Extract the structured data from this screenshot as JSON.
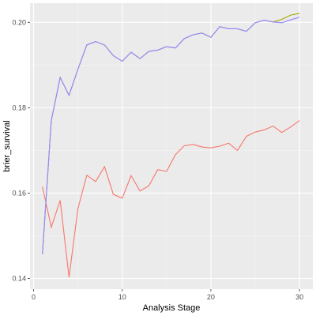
{
  "chart_data": {
    "type": "line",
    "title": "",
    "xlabel": "Analysis Stage",
    "ylabel": "brier_survival",
    "xlim": [
      -0.4,
      31.5
    ],
    "ylim": [
      0.1375,
      0.2045
    ],
    "x_ticks": [
      0,
      10,
      20,
      30
    ],
    "y_ticks": [
      0.14,
      0.16,
      0.18,
      0.2
    ],
    "x_tick_labels": [
      "0",
      "10",
      "20",
      "30"
    ],
    "y_tick_labels": [
      "0.14",
      "0.16",
      "0.18",
      "0.20"
    ],
    "grid": true,
    "legend": "none",
    "panel_background": "#EBEBEB",
    "x": [
      1,
      2,
      3,
      4,
      5,
      6,
      7,
      8,
      9,
      10,
      11,
      12,
      13,
      14,
      15,
      16,
      17,
      18,
      19,
      20,
      21,
      22,
      23,
      24,
      25,
      26,
      27,
      28,
      29,
      30
    ],
    "series": [
      {
        "color": "#F8766D",
        "values": [
          0.1615,
          0.152,
          0.1583,
          0.1403,
          0.1563,
          0.1642,
          0.1627,
          0.1662,
          0.1597,
          0.1588,
          0.1641,
          0.1605,
          0.1617,
          0.1655,
          0.1651,
          0.169,
          0.1711,
          0.1714,
          0.1708,
          0.1706,
          0.171,
          0.1717,
          0.17,
          0.1733,
          0.1743,
          0.1748,
          0.1757,
          0.1742,
          0.1755,
          0.177
        ]
      },
      {
        "color": "#A3A500",
        "values": [
          0.1457,
          0.177,
          0.1871,
          0.1829,
          0.189,
          0.1947,
          0.1955,
          0.1947,
          0.1922,
          0.1909,
          0.193,
          0.1915,
          0.1932,
          0.1935,
          0.1943,
          0.194,
          0.1962,
          0.1971,
          0.1975,
          0.1965,
          0.199,
          0.1985,
          0.1985,
          0.1979,
          0.1999,
          0.2005,
          0.2001,
          0.2007,
          0.2017,
          0.2021
        ]
      },
      {
        "color": "#619CFF",
        "values": [
          0.1457,
          0.177,
          0.1871,
          0.1829,
          0.189,
          0.1947,
          0.1955,
          0.1947,
          0.1922,
          0.1909,
          0.193,
          0.1915,
          0.1932,
          0.1935,
          0.1943,
          0.194,
          0.1962,
          0.1971,
          0.1975,
          0.1965,
          0.199,
          0.1985,
          0.1985,
          0.1979,
          0.1999,
          0.2005,
          0.2001,
          0.1999,
          0.2006,
          0.2012
        ]
      },
      {
        "color": "#C77CFF",
        "values": [
          0.1457,
          0.177,
          0.1871,
          0.1829,
          0.189,
          0.1947,
          0.1955,
          0.1947,
          0.1922,
          0.1909,
          0.193,
          0.1915,
          0.1932,
          0.1935,
          0.1943,
          0.194,
          0.1962,
          0.1971,
          0.1975,
          0.1965,
          0.199,
          0.1985,
          0.1985,
          0.1979,
          0.1999,
          0.2005,
          0.2001,
          0.1999,
          0.2006,
          0.2012
        ]
      }
    ]
  }
}
